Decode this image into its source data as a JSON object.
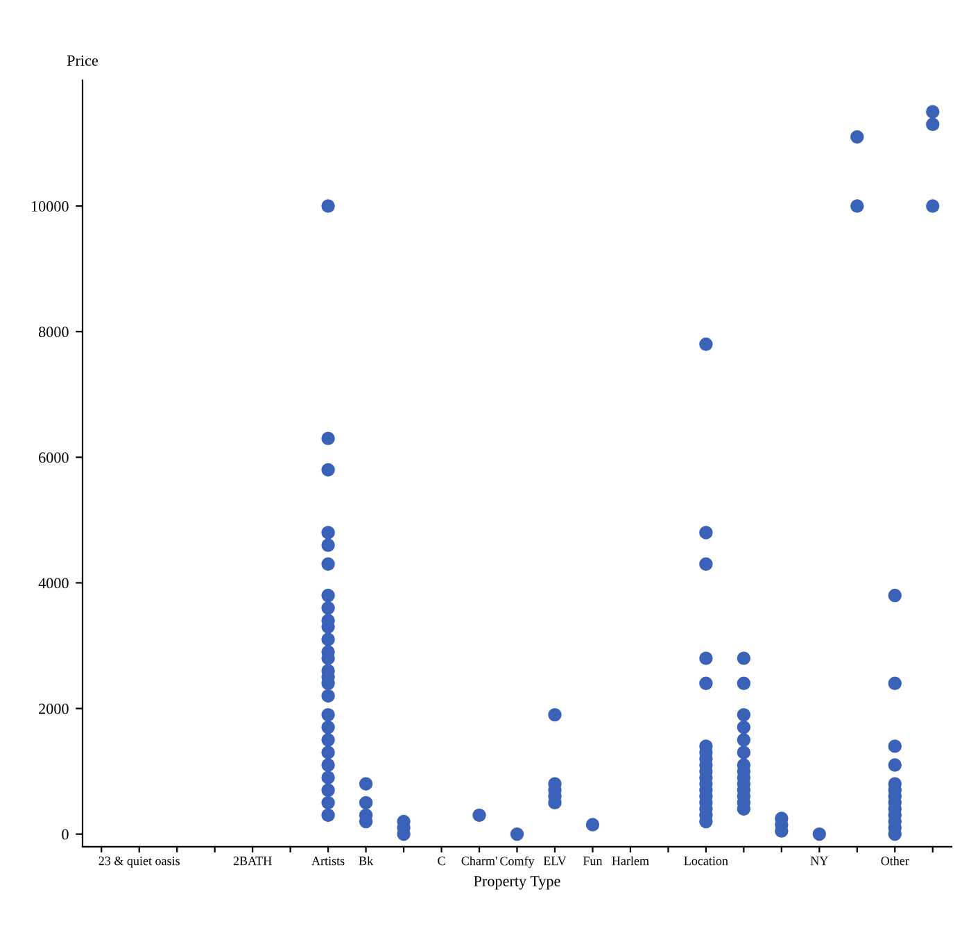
{
  "chart_data": {
    "type": "scatter",
    "xlabel": "Property Type",
    "ylabel": "Price",
    "categories": [
      null,
      "23 & quiet oasis",
      null,
      null,
      "2BATH",
      null,
      "Artists",
      "Bk",
      null,
      "C",
      "Charm'",
      "Comfy",
      "ELV",
      "Fun",
      "Harlem",
      null,
      "Location",
      null,
      null,
      "NY",
      null,
      "Other",
      null
    ],
    "series": [
      {
        "color": "#3a62b8",
        "values": [
          null,
          null,
          null,
          null,
          null,
          null,
          10000,
          800,
          200,
          null,
          300,
          0,
          1900,
          150,
          null,
          null,
          7800,
          2800,
          250,
          0,
          11100,
          3800,
          11500
        ]
      },
      {
        "color": "#3a62b8",
        "values": [
          null,
          null,
          null,
          null,
          null,
          null,
          6300,
          500,
          100,
          null,
          null,
          null,
          800,
          null,
          null,
          null,
          4800,
          2400,
          150,
          null,
          10000,
          2400,
          11300
        ]
      },
      {
        "color": "#3a62b8",
        "values": [
          null,
          null,
          null,
          null,
          null,
          null,
          5800,
          300,
          0,
          null,
          null,
          null,
          700,
          null,
          null,
          null,
          4300,
          1900,
          50,
          null,
          null,
          1400,
          10000
        ]
      },
      {
        "color": "#3a62b8",
        "values": [
          null,
          null,
          null,
          null,
          null,
          null,
          4800,
          200,
          null,
          null,
          null,
          null,
          600,
          null,
          null,
          null,
          2800,
          1700,
          null,
          null,
          null,
          1100,
          null
        ]
      },
      {
        "color": "#3a62b8",
        "values": [
          null,
          null,
          null,
          null,
          null,
          null,
          4600,
          null,
          null,
          null,
          null,
          null,
          500,
          null,
          null,
          null,
          2400,
          1500,
          null,
          null,
          null,
          800,
          null
        ]
      },
      {
        "color": "#3a62b8",
        "values": [
          null,
          null,
          null,
          null,
          null,
          null,
          4300,
          null,
          null,
          null,
          null,
          null,
          null,
          null,
          null,
          null,
          1400,
          1300,
          null,
          null,
          null,
          700,
          null
        ]
      },
      {
        "color": "#3a62b8",
        "values": [
          null,
          null,
          null,
          null,
          null,
          null,
          3800,
          null,
          null,
          null,
          null,
          null,
          null,
          null,
          null,
          null,
          1300,
          1100,
          null,
          null,
          null,
          600,
          null
        ]
      },
      {
        "color": "#3a62b8",
        "values": [
          null,
          null,
          null,
          null,
          null,
          null,
          3600,
          null,
          null,
          null,
          null,
          null,
          null,
          null,
          null,
          null,
          1200,
          1000,
          null,
          null,
          null,
          500,
          null
        ]
      },
      {
        "color": "#3a62b8",
        "values": [
          null,
          null,
          null,
          null,
          null,
          null,
          3400,
          null,
          null,
          null,
          null,
          null,
          null,
          null,
          null,
          null,
          1100,
          900,
          null,
          null,
          null,
          400,
          null
        ]
      },
      {
        "color": "#3a62b8",
        "values": [
          null,
          null,
          null,
          null,
          null,
          null,
          3300,
          null,
          null,
          null,
          null,
          null,
          null,
          null,
          null,
          null,
          1000,
          800,
          null,
          null,
          null,
          300,
          null
        ]
      },
      {
        "color": "#3a62b8",
        "values": [
          null,
          null,
          null,
          null,
          null,
          null,
          3100,
          null,
          null,
          null,
          null,
          null,
          null,
          null,
          null,
          null,
          900,
          700,
          null,
          null,
          null,
          200,
          null
        ]
      },
      {
        "color": "#3a62b8",
        "values": [
          null,
          null,
          null,
          null,
          null,
          null,
          2900,
          null,
          null,
          null,
          null,
          null,
          null,
          null,
          null,
          null,
          800,
          600,
          null,
          null,
          null,
          100,
          null
        ]
      },
      {
        "color": "#3a62b8",
        "values": [
          null,
          null,
          null,
          null,
          null,
          null,
          2800,
          null,
          null,
          null,
          null,
          null,
          null,
          null,
          null,
          null,
          700,
          500,
          null,
          null,
          null,
          0,
          null
        ]
      },
      {
        "color": "#3a62b8",
        "values": [
          null,
          null,
          null,
          null,
          null,
          null,
          2600,
          null,
          null,
          null,
          null,
          null,
          null,
          null,
          null,
          null,
          600,
          400,
          null,
          null,
          null,
          null,
          null
        ]
      },
      {
        "color": "#3a62b8",
        "values": [
          null,
          null,
          null,
          null,
          null,
          null,
          2500,
          null,
          null,
          null,
          null,
          null,
          null,
          null,
          null,
          null,
          500,
          null,
          null,
          null,
          null,
          null,
          null
        ]
      },
      {
        "color": "#3a62b8",
        "values": [
          null,
          null,
          null,
          null,
          null,
          null,
          2400,
          null,
          null,
          null,
          null,
          null,
          null,
          null,
          null,
          null,
          400,
          null,
          null,
          null,
          null,
          null,
          null
        ]
      },
      {
        "color": "#3a62b8",
        "values": [
          null,
          null,
          null,
          null,
          null,
          null,
          2200,
          null,
          null,
          null,
          null,
          null,
          null,
          null,
          null,
          null,
          300,
          null,
          null,
          null,
          null,
          null,
          null
        ]
      },
      {
        "color": "#3a62b8",
        "values": [
          null,
          null,
          null,
          null,
          null,
          null,
          1900,
          null,
          null,
          null,
          null,
          null,
          null,
          null,
          null,
          null,
          200,
          null,
          null,
          null,
          null,
          null,
          null
        ]
      },
      {
        "color": "#3a62b8",
        "values": [
          null,
          null,
          null,
          null,
          null,
          null,
          1700,
          null,
          null,
          null,
          null,
          null,
          null,
          null,
          null,
          null,
          null,
          null,
          null,
          null,
          null,
          null,
          null
        ]
      },
      {
        "color": "#3a62b8",
        "values": [
          null,
          null,
          null,
          null,
          null,
          null,
          1500,
          null,
          null,
          null,
          null,
          null,
          null,
          null,
          null,
          null,
          null,
          null,
          null,
          null,
          null,
          null,
          null
        ]
      },
      {
        "color": "#3a62b8",
        "values": [
          null,
          null,
          null,
          null,
          null,
          null,
          1300,
          null,
          null,
          null,
          null,
          null,
          null,
          null,
          null,
          null,
          null,
          null,
          null,
          null,
          null,
          null,
          null
        ]
      },
      {
        "color": "#3a62b8",
        "values": [
          null,
          null,
          null,
          null,
          null,
          null,
          1100,
          null,
          null,
          null,
          null,
          null,
          null,
          null,
          null,
          null,
          null,
          null,
          null,
          null,
          null,
          null,
          null
        ]
      },
      {
        "color": "#3a62b8",
        "values": [
          null,
          null,
          null,
          null,
          null,
          null,
          900,
          null,
          null,
          null,
          null,
          null,
          null,
          null,
          null,
          null,
          null,
          null,
          null,
          null,
          null,
          null,
          null
        ]
      },
      {
        "color": "#3a62b8",
        "values": [
          null,
          null,
          null,
          null,
          null,
          null,
          700,
          null,
          null,
          null,
          null,
          null,
          null,
          null,
          null,
          null,
          null,
          null,
          null,
          null,
          null,
          null,
          null
        ]
      },
      {
        "color": "#3a62b8",
        "values": [
          null,
          null,
          null,
          null,
          null,
          null,
          500,
          null,
          null,
          null,
          null,
          null,
          null,
          null,
          null,
          null,
          null,
          null,
          null,
          null,
          null,
          null,
          null
        ]
      },
      {
        "color": "#3a62b8",
        "values": [
          null,
          null,
          null,
          null,
          null,
          null,
          300,
          null,
          null,
          null,
          null,
          null,
          null,
          null,
          null,
          null,
          null,
          null,
          null,
          null,
          null,
          null,
          null
        ]
      }
    ],
    "marker": "circle",
    "ylim": [
      -200,
      12000
    ],
    "yticks": [
      0,
      2000,
      4000,
      6000,
      8000,
      10000
    ],
    "grid": false,
    "legend": false
  }
}
